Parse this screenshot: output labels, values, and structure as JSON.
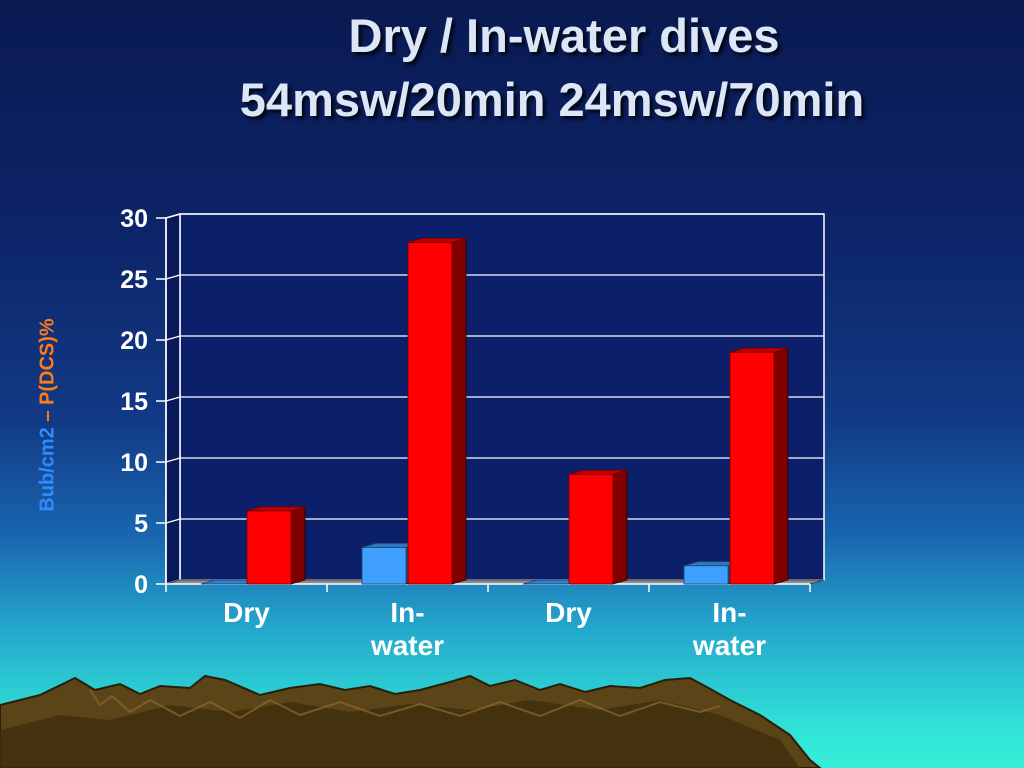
{
  "title_line1": "Dry / In-water dives",
  "title_line2": "54msw/20min  24msw/70min",
  "ylabel": {
    "part1": "Bub/cm2",
    "separator": " – ",
    "part2": "P(DCS)%",
    "part1_color": "#2f8cff",
    "part2_color": "#ff7a1a"
  },
  "chart_data": {
    "type": "bar",
    "categories": [
      "Dry",
      "In-\nwater",
      "Dry",
      "In-\nwater"
    ],
    "series": [
      {
        "values": [
          0,
          3,
          0,
          1.5
        ],
        "color": "#3fa0ff"
      },
      {
        "values": [
          6,
          28,
          9,
          19
        ],
        "color": "#ff0000"
      }
    ],
    "ylim": [
      0,
      30
    ],
    "yticks": [
      0,
      5,
      10,
      15,
      20,
      25,
      30
    ],
    "grid": true
  }
}
